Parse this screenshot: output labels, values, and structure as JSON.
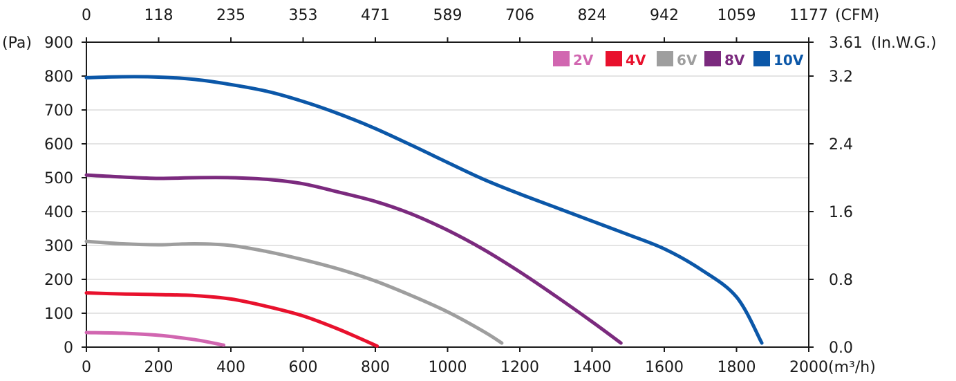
{
  "chart_data": {
    "type": "line",
    "title": "",
    "x_bottom": {
      "unit_label": "(m³/h)",
      "range": [
        0,
        2000
      ],
      "ticks": [
        "0",
        "200",
        "400",
        "600",
        "800",
        "1000",
        "1200",
        "1400",
        "1600",
        "1800",
        "2000"
      ]
    },
    "x_top": {
      "unit_label": "(CFM)",
      "ticks": [
        "0",
        "118",
        "235",
        "353",
        "471",
        "589",
        "706",
        "824",
        "942",
        "1059",
        "1177"
      ]
    },
    "y_left": {
      "unit_label": "(Pa)",
      "range": [
        0,
        900
      ],
      "ticks": [
        "0",
        "100",
        "200",
        "300",
        "400",
        "500",
        "600",
        "700",
        "800",
        "900"
      ]
    },
    "y_right": {
      "unit_label": "(In.W.G.)",
      "ticks": [
        {
          "label": "0.0",
          "pa": 0
        },
        {
          "label": "0.8",
          "pa": 200
        },
        {
          "label": "1.6",
          "pa": 400
        },
        {
          "label": "2.4",
          "pa": 600
        },
        {
          "label": "3.2",
          "pa": 800
        },
        {
          "label": "3.61",
          "pa": 900
        }
      ]
    },
    "grid": "horizontal",
    "legend_position": "top-right",
    "series": [
      {
        "name": "2V",
        "color": "#d166b0",
        "x": [
          0,
          100,
          200,
          300,
          380
        ],
        "y": [
          43,
          41,
          35,
          22,
          6
        ]
      },
      {
        "name": "4V",
        "color": "#e8112d",
        "x": [
          0,
          100,
          200,
          300,
          400,
          500,
          600,
          700,
          805
        ],
        "y": [
          160,
          157,
          155,
          152,
          142,
          120,
          92,
          52,
          3
        ]
      },
      {
        "name": "6V",
        "color": "#9e9e9e",
        "x": [
          0,
          100,
          200,
          300,
          400,
          500,
          600,
          700,
          800,
          900,
          1000,
          1100,
          1150
        ],
        "y": [
          312,
          305,
          302,
          305,
          300,
          282,
          258,
          230,
          195,
          152,
          104,
          46,
          12
        ]
      },
      {
        "name": "8V",
        "color": "#7b2a7e",
        "x": [
          0,
          100,
          200,
          300,
          400,
          500,
          600,
          700,
          800,
          900,
          1000,
          1100,
          1200,
          1300,
          1400,
          1480
        ],
        "y": [
          508,
          502,
          498,
          500,
          500,
          495,
          482,
          457,
          430,
          393,
          345,
          288,
          222,
          150,
          75,
          12
        ]
      },
      {
        "name": "10V",
        "color": "#0b57a8",
        "x": [
          0,
          100,
          200,
          300,
          400,
          500,
          600,
          700,
          800,
          900,
          1000,
          1100,
          1200,
          1300,
          1400,
          1500,
          1600,
          1700,
          1800,
          1870
        ],
        "y": [
          795,
          798,
          797,
          790,
          775,
          755,
          725,
          688,
          645,
          596,
          545,
          495,
          452,
          412,
          372,
          332,
          290,
          230,
          148,
          12
        ]
      }
    ]
  }
}
